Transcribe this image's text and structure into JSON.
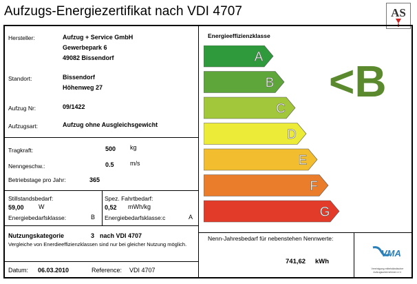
{
  "title": "Aufzugs-Energiezertifikat nach VDI 4707",
  "logo": {
    "text": "AS"
  },
  "hersteller": {
    "label": "Hersteller:",
    "lines": [
      "Aufzug + Service GmbH",
      "Gewerbepark 6",
      "49082 Bissendorf"
    ]
  },
  "standort": {
    "label": "Standort:",
    "lines": [
      "Bissendorf",
      "Höhenweg 27"
    ]
  },
  "aufzug_nr": {
    "label": "Aufzug Nr:",
    "value": "09/1422"
  },
  "aufzugsart": {
    "label": "Aufzugsart:",
    "value": "Aufzug ohne Ausgleichsgewicht"
  },
  "tragkraft": {
    "label": "Tragkraft:",
    "value": "500",
    "unit": "kg"
  },
  "nenngeschw": {
    "label": "Nenngeschw.:",
    "value": "0.5",
    "unit": "m/s"
  },
  "betriebstage": {
    "label": "Betriebstage pro Jahr:",
    "value": "365"
  },
  "stillstand": {
    "label": "Stillstandsbedarf:",
    "value": "59,00",
    "unit": "W",
    "class_label": "Energiebedarfsklasse:",
    "class_value": "B"
  },
  "fahrt": {
    "label": "Spez. Fahrtbedarf:",
    "value": "0,52",
    "unit": "mWh/kg",
    "class_label": "Energiebedarfsklasse:c",
    "class_value": "A"
  },
  "nutzung": {
    "label": "Nutzungskategorie",
    "value": "3",
    "suffix": "nach VDI 4707",
    "note": "Vergleiche von Enerdieeffizienzklassen sind nur bei gleicher Nutzung möglich."
  },
  "datum": {
    "label": "Datum:",
    "value": "06.03.2010"
  },
  "reference": {
    "label": "Reference:",
    "value": "VDI 4707"
  },
  "effizienz": {
    "heading": "Energieeffizienzklasse",
    "classes": [
      {
        "letter": "A",
        "color": "#2f9a3c"
      },
      {
        "letter": "B",
        "color": "#5ea63a"
      },
      {
        "letter": "C",
        "color": "#a3c73a"
      },
      {
        "letter": "D",
        "color": "#ecec38"
      },
      {
        "letter": "E",
        "color": "#f2be30"
      },
      {
        "letter": "F",
        "color": "#e97d2c"
      },
      {
        "letter": "G",
        "color": "#e33b2a"
      }
    ],
    "result": "<B",
    "result_color": "#5b8a2e"
  },
  "jahresbedarf": {
    "label": "Nenn-Jahresbedarf für nebenstehen Nennwerte:",
    "value": "741,62",
    "unit": "kWh"
  },
  "vma": {
    "logo_text": "VMA",
    "caption": "Vereinigung mittelständischer Aufzugsunternehmen e.V."
  }
}
